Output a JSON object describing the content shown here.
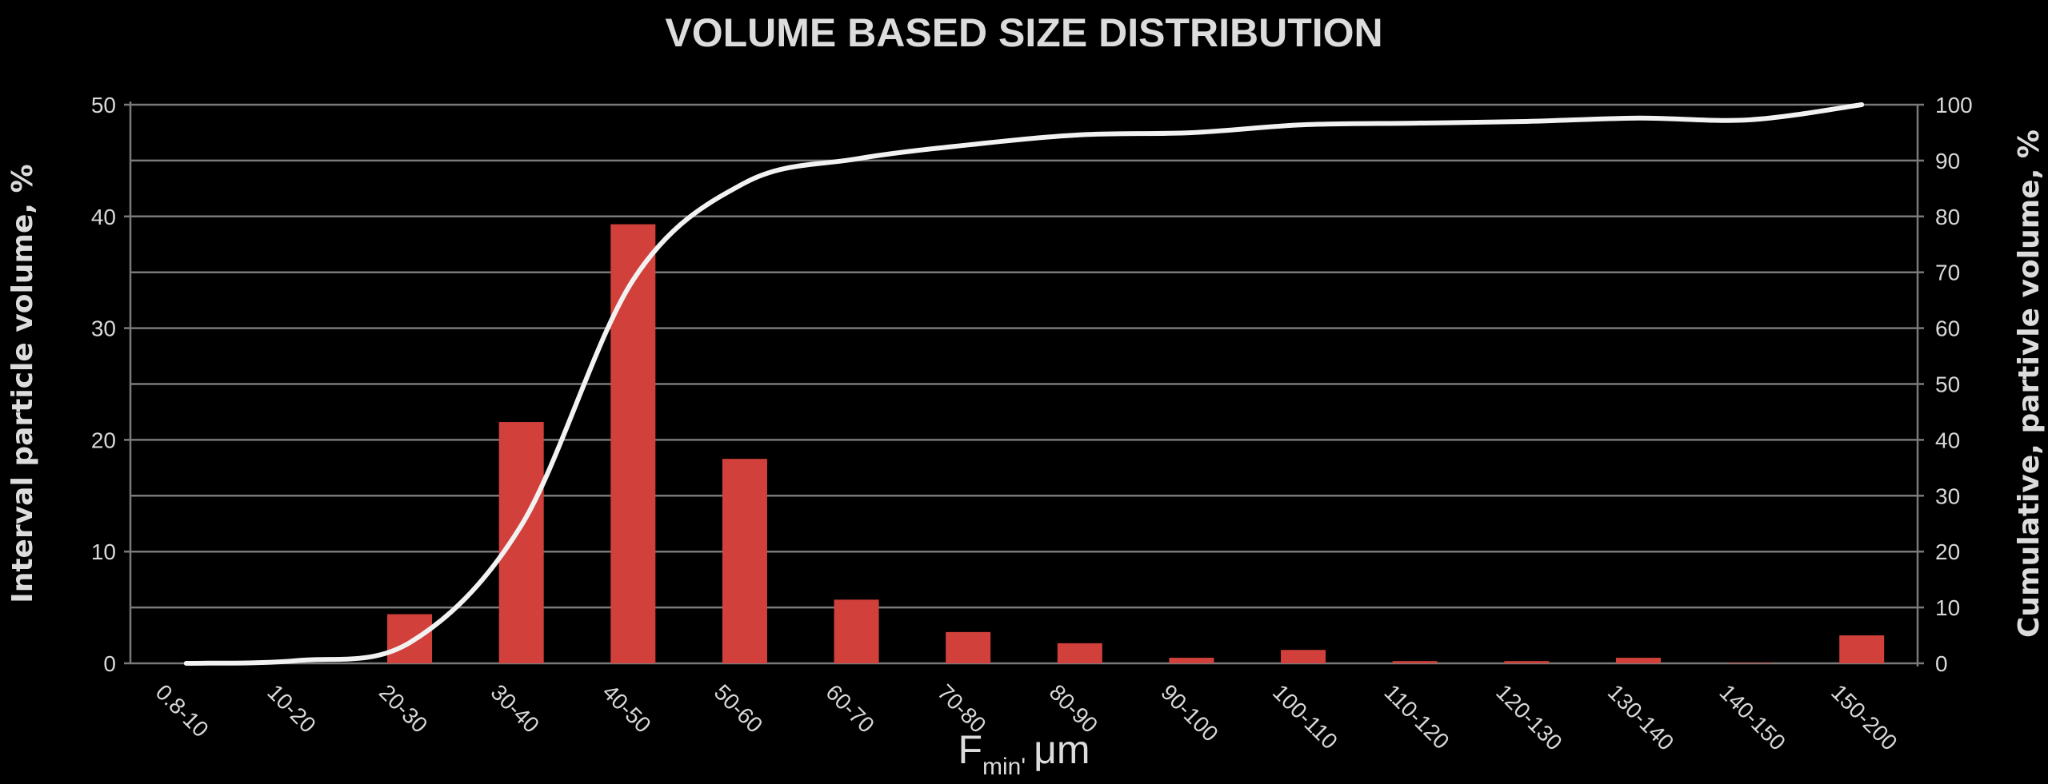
{
  "chart_data": {
    "type": "bar",
    "title": "VOLUME BASED SIZE DISTRIBUTION",
    "xlabel": {
      "main": "F",
      "subscript": "min'",
      "unit": "μm"
    },
    "ylabel": "Interval particle volume, %",
    "y2label": "Cumulative, partivle volume, %",
    "categories": [
      "0.8-10",
      "10-20",
      "20-30",
      "30-40",
      "40-50",
      "50-60",
      "60-70",
      "70-80",
      "80-90",
      "90-100",
      "100-110",
      "110-120",
      "120-130",
      "130-140",
      "140-150",
      "150-200"
    ],
    "series": [
      {
        "type": "bar",
        "axis": "left",
        "color": "#d1403b",
        "values": [
          0,
          0,
          4.4,
          21.6,
          39.3,
          18.3,
          5.7,
          2.8,
          1.8,
          0.5,
          1.2,
          0.2,
          0.2,
          0.5,
          0.05,
          2.5
        ]
      },
      {
        "type": "line",
        "axis": "right",
        "color": "#f2f2f2",
        "values": [
          0,
          0.5,
          3.7,
          24.7,
          68.6,
          86,
          90.3,
          92.8,
          94.6,
          95,
          96.4,
          96.7,
          97,
          97.6,
          97.3,
          100
        ]
      }
    ],
    "ylim": [
      0,
      50
    ],
    "yticks": [
      0,
      10,
      20,
      30,
      40,
      50
    ],
    "y2lim": [
      0,
      100
    ],
    "y2ticks": [
      0,
      10,
      20,
      30,
      40,
      50,
      60,
      70,
      80,
      90,
      100
    ],
    "grid": true,
    "legend": "none"
  }
}
